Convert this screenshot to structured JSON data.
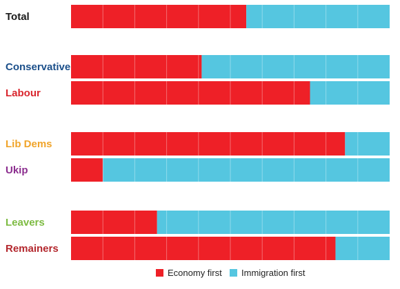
{
  "chart_data": {
    "type": "bar",
    "orientation": "horizontal",
    "stacked": true,
    "normalized": true,
    "title": "",
    "xlabel": "",
    "ylabel": "",
    "xlim": [
      0,
      100
    ],
    "grid": true,
    "legend_position": "bottom",
    "categories": [
      "Total",
      "Conservative",
      "Labour",
      "Lib Dems",
      "Ukip",
      "Leavers",
      "Remainers"
    ],
    "category_colors": [
      "#1a1a1a",
      "#1b4f8a",
      "#d9262e",
      "#f0a42a",
      "#8b2d8e",
      "#7dbb42",
      "#b3272d"
    ],
    "groups": [
      [
        0
      ],
      [
        1,
        2
      ],
      [
        3,
        4
      ],
      [
        5,
        6
      ]
    ],
    "series": [
      {
        "name": "Economy first",
        "color": "#ee2027",
        "values": [
          55,
          41,
          75,
          86,
          10,
          27,
          83
        ]
      },
      {
        "name": "Immigration first",
        "color": "#55c6e0",
        "values": [
          45,
          59,
          25,
          14,
          90,
          73,
          17
        ]
      }
    ]
  }
}
